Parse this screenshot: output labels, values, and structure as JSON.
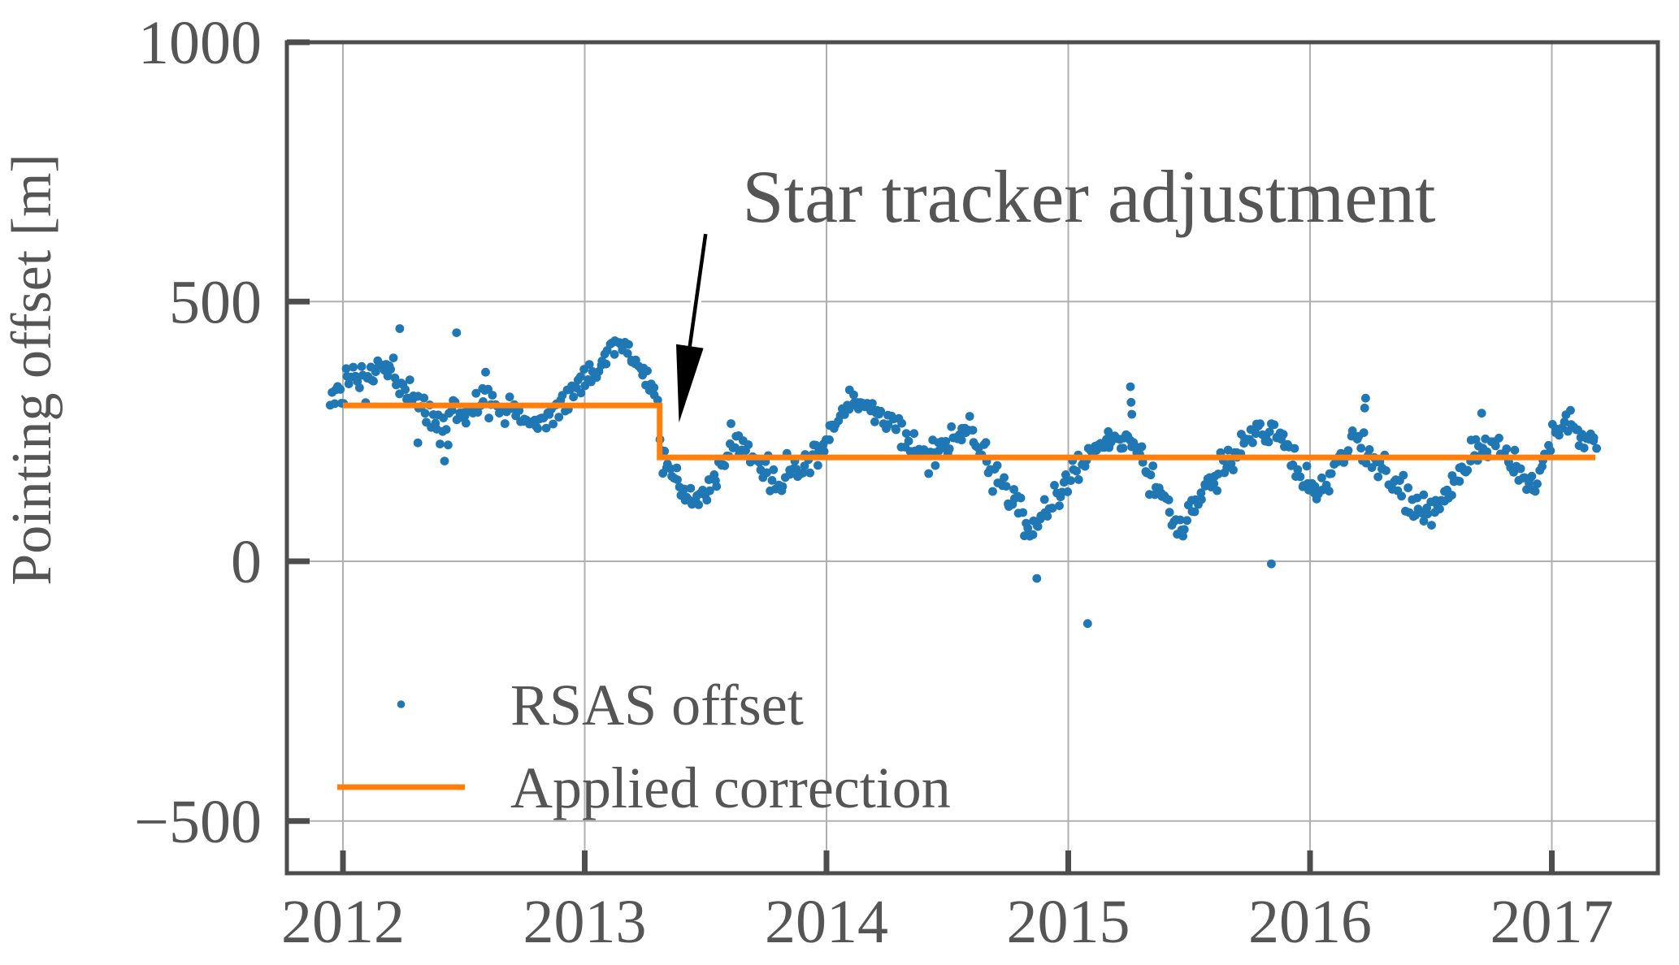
{
  "chart_data": {
    "type": "scatter",
    "title": "",
    "xlabel": "",
    "ylabel": "Pointing offset [m]",
    "xlim": [
      2011.77,
      2017.44
    ],
    "ylim": [
      -600,
      1000
    ],
    "grid": true,
    "legend_position": "lower left",
    "xticks": [
      2012,
      2013,
      2014,
      2015,
      2016,
      2017
    ],
    "xtick_labels": [
      "2012",
      "2013",
      "2014",
      "2015",
      "2016",
      "2017"
    ],
    "yticks": [
      1000,
      500,
      0,
      -500
    ],
    "ytick_labels": [
      "1000",
      "500",
      "0",
      "−500"
    ],
    "colors": {
      "scatter": "#1f77b4",
      "correction": "#ff7f0e",
      "text": "#555555",
      "spine": "#4d4d4d",
      "grid": "#b0b0b0",
      "background": "#ffffff",
      "arrow": "#000000",
      "arrow_halo": "#ffffff"
    },
    "annotation": {
      "text": "Star tracker adjustment",
      "text_x_year": 2015.06,
      "text_y_value": 655,
      "arrow_tail": [
        2013.5,
        630
      ],
      "arrow_tip": [
        2013.39,
        267
      ]
    },
    "series": [
      {
        "name": "RSAS offset",
        "type": "scatter",
        "color": "#1f77b4",
        "marker": "dot",
        "trend_year_mean_halfspread": [
          [
            2011.95,
            310,
            55
          ],
          [
            2012.05,
            340,
            60
          ],
          [
            2012.13,
            370,
            55
          ],
          [
            2012.2,
            365,
            60
          ],
          [
            2012.3,
            300,
            55
          ],
          [
            2012.42,
            265,
            55
          ],
          [
            2012.5,
            300,
            45
          ],
          [
            2012.6,
            310,
            45
          ],
          [
            2012.7,
            280,
            45
          ],
          [
            2012.8,
            270,
            40
          ],
          [
            2012.9,
            300,
            40
          ],
          [
            2013.0,
            345,
            40
          ],
          [
            2013.08,
            385,
            40
          ],
          [
            2013.14,
            415,
            30
          ],
          [
            2013.22,
            380,
            45
          ],
          [
            2013.295,
            320,
            40
          ],
          [
            2013.315,
            200,
            45
          ],
          [
            2013.4,
            130,
            45
          ],
          [
            2013.47,
            115,
            40
          ],
          [
            2013.55,
            175,
            45
          ],
          [
            2013.62,
            235,
            35
          ],
          [
            2013.7,
            200,
            45
          ],
          [
            2013.79,
            155,
            55
          ],
          [
            2013.88,
            180,
            40
          ],
          [
            2013.96,
            205,
            40
          ],
          [
            2014.06,
            285,
            35
          ],
          [
            2014.15,
            305,
            30
          ],
          [
            2014.22,
            280,
            35
          ],
          [
            2014.32,
            240,
            50
          ],
          [
            2014.42,
            200,
            55
          ],
          [
            2014.52,
            235,
            45
          ],
          [
            2014.58,
            260,
            40
          ],
          [
            2014.65,
            205,
            55
          ],
          [
            2014.75,
            125,
            55
          ],
          [
            2014.85,
            65,
            45
          ],
          [
            2014.95,
            120,
            50
          ],
          [
            2015.05,
            180,
            40
          ],
          [
            2015.15,
            230,
            30
          ],
          [
            2015.25,
            240,
            30
          ],
          [
            2015.35,
            160,
            55
          ],
          [
            2015.45,
            60,
            50
          ],
          [
            2015.55,
            120,
            50
          ],
          [
            2015.65,
            190,
            40
          ],
          [
            2015.78,
            255,
            40
          ],
          [
            2015.88,
            245,
            40
          ],
          [
            2015.96,
            165,
            50
          ],
          [
            2016.03,
            125,
            45
          ],
          [
            2016.1,
            170,
            45
          ],
          [
            2016.18,
            245,
            40
          ],
          [
            2016.28,
            185,
            55
          ],
          [
            2016.38,
            135,
            45
          ],
          [
            2016.47,
            85,
            50
          ],
          [
            2016.57,
            130,
            40
          ],
          [
            2016.68,
            210,
            40
          ],
          [
            2016.78,
            225,
            35
          ],
          [
            2016.88,
            165,
            40
          ],
          [
            2016.94,
            150,
            45
          ],
          [
            2017.01,
            255,
            45
          ],
          [
            2017.06,
            275,
            35
          ],
          [
            2017.13,
            235,
            30
          ],
          [
            2017.18,
            230,
            30
          ]
        ],
        "outliers_year_value": [
          [
            2012.235,
            448
          ],
          [
            2012.47,
            440
          ],
          [
            2012.59,
            364
          ],
          [
            2012.42,
            193
          ],
          [
            2012.31,
            228
          ],
          [
            2013.605,
            265
          ],
          [
            2014.095,
            330
          ],
          [
            2014.87,
            -33
          ],
          [
            2015.08,
            -120
          ],
          [
            2015.257,
            336
          ],
          [
            2015.26,
            306
          ],
          [
            2015.263,
            283
          ],
          [
            2015.84,
            -5
          ],
          [
            2016.23,
            314
          ],
          [
            2016.226,
            295
          ],
          [
            2016.71,
            285
          ]
        ],
        "gen": {
          "t_start": 2011.95,
          "t_end": 2017.185,
          "dt": 0.0078,
          "x_jitter": 0.008,
          "seed": 20130405,
          "dot_radius": 5.4
        }
      },
      {
        "name": "Applied correction",
        "type": "step-line",
        "color": "#ff7f0e",
        "line_width": 7,
        "points_year_value": [
          [
            2012.0,
            300
          ],
          [
            2013.31,
            300
          ],
          [
            2013.31,
            200
          ],
          [
            2017.18,
            200
          ]
        ]
      }
    ],
    "legend": {
      "items": [
        {
          "label": "RSAS offset",
          "marker": "dot"
        },
        {
          "label": "Applied correction",
          "marker": "line"
        }
      ]
    }
  }
}
